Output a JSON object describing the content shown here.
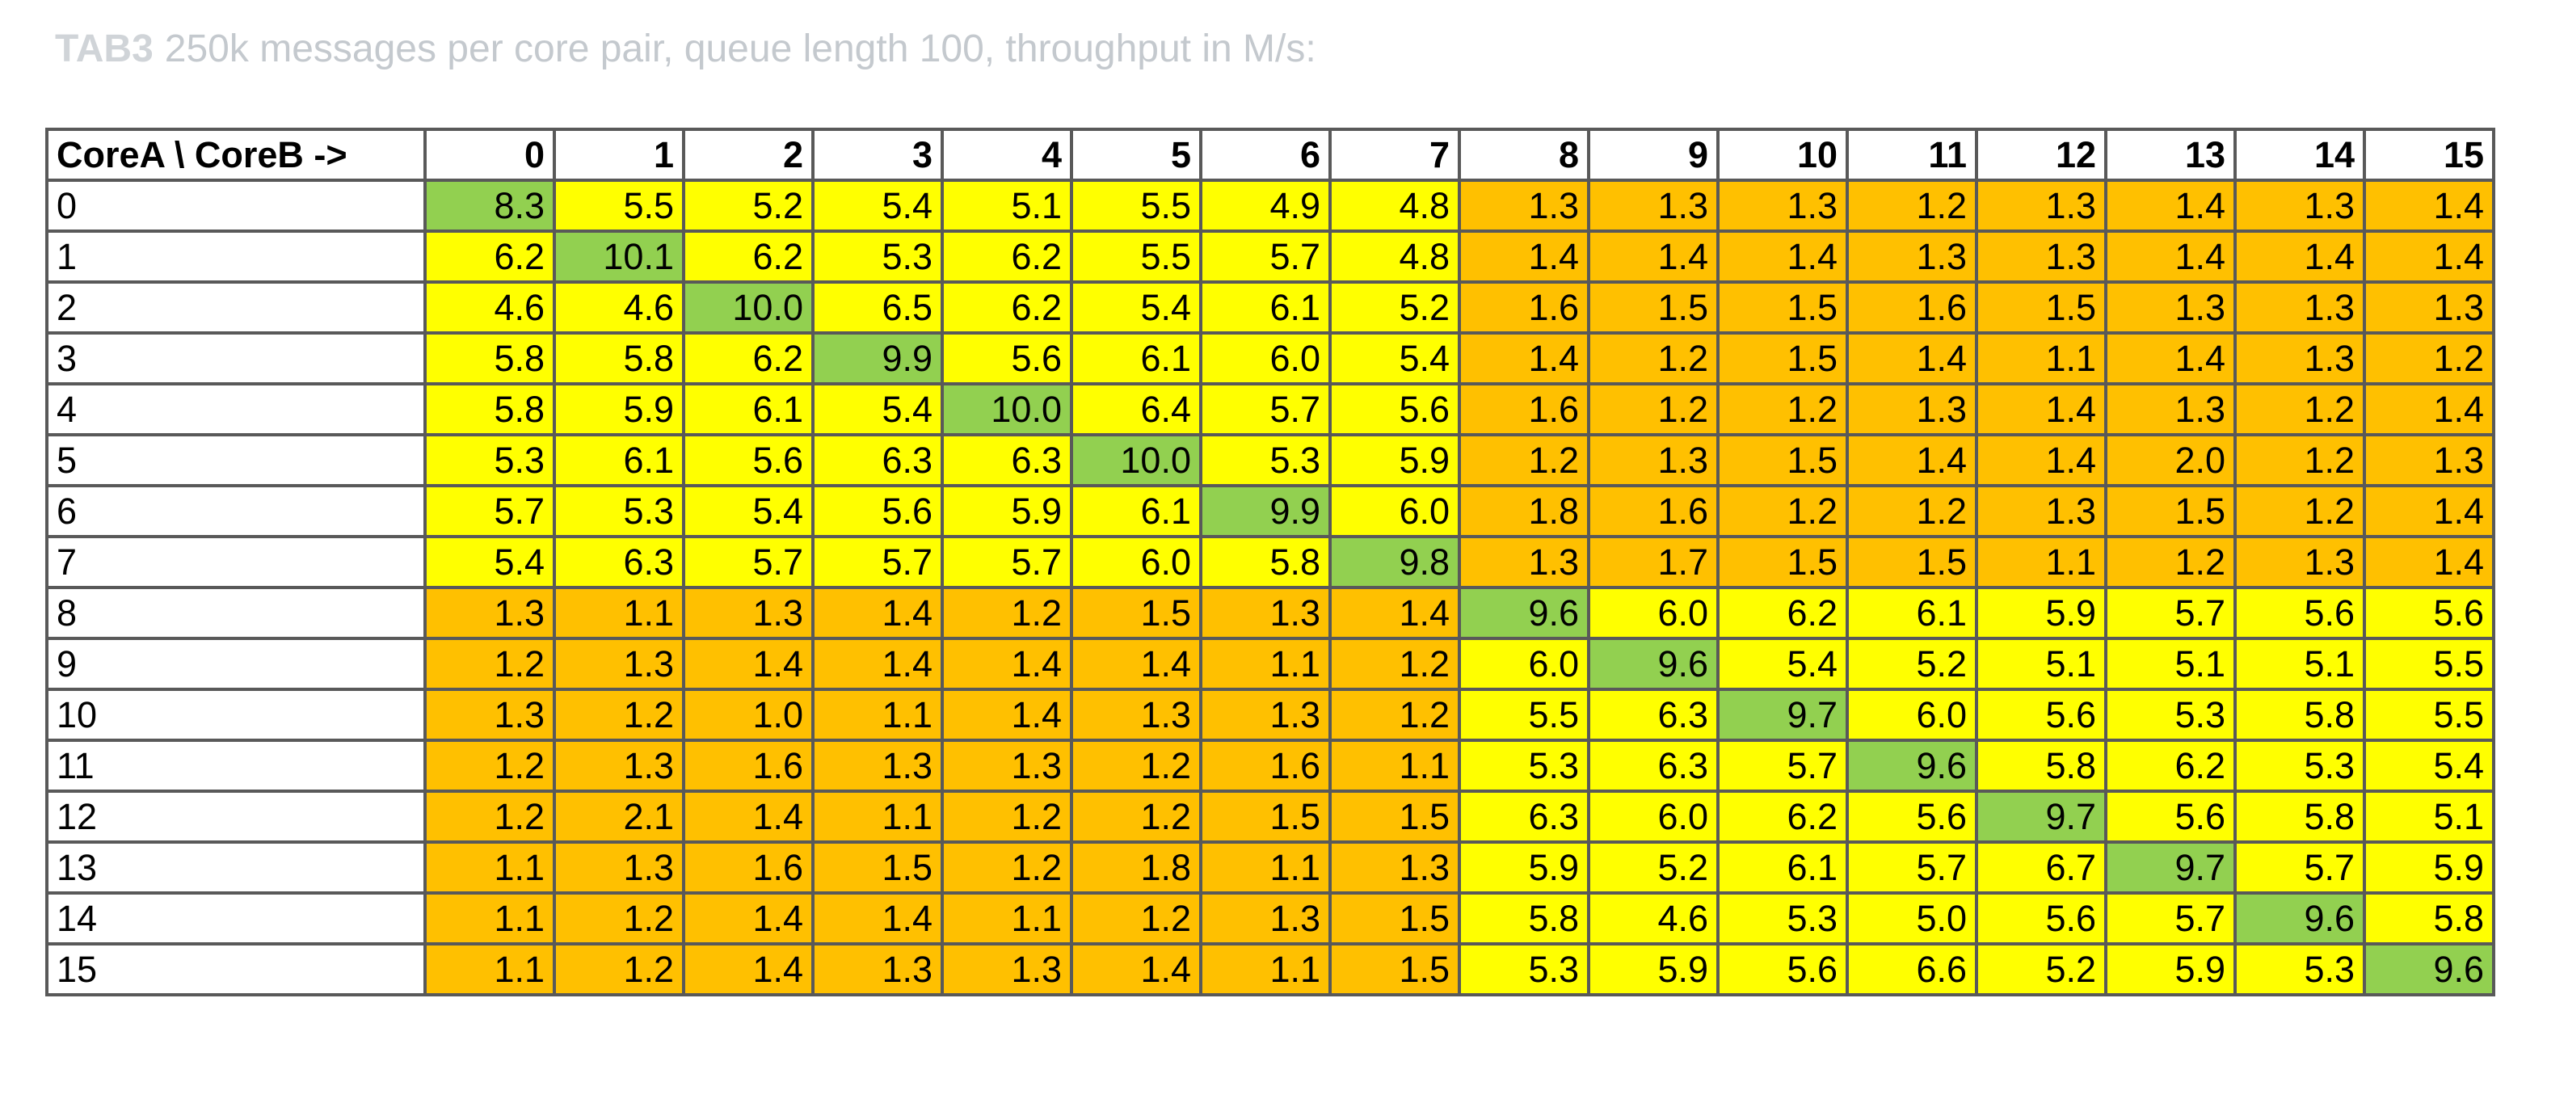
{
  "caption": {
    "tag": "TAB3",
    "text": "250k messages per core pair, queue length 100, throughput in M/s:"
  },
  "colors": {
    "diagonal": "#92d050",
    "same_socket": "#ffff00",
    "cross_socket": "#ffc000",
    "border": "#595959",
    "caption": "#c4c9ce"
  },
  "chart_data": {
    "type": "heatmap",
    "corner_label": "CoreA \\ CoreB ->",
    "columns": [
      "0",
      "1",
      "2",
      "3",
      "4",
      "5",
      "6",
      "7",
      "8",
      "9",
      "10",
      "11",
      "12",
      "13",
      "14",
      "15"
    ],
    "rows": [
      "0",
      "1",
      "2",
      "3",
      "4",
      "5",
      "6",
      "7",
      "8",
      "9",
      "10",
      "11",
      "12",
      "13",
      "14",
      "15"
    ],
    "values": [
      [
        "8.3",
        "5.5",
        "5.2",
        "5.4",
        "5.1",
        "5.5",
        "4.9",
        "4.8",
        "1.3",
        "1.3",
        "1.3",
        "1.2",
        "1.3",
        "1.4",
        "1.3",
        "1.4"
      ],
      [
        "6.2",
        "10.1",
        "6.2",
        "5.3",
        "6.2",
        "5.5",
        "5.7",
        "4.8",
        "1.4",
        "1.4",
        "1.4",
        "1.3",
        "1.3",
        "1.4",
        "1.4",
        "1.4"
      ],
      [
        "4.6",
        "4.6",
        "10.0",
        "6.5",
        "6.2",
        "5.4",
        "6.1",
        "5.2",
        "1.6",
        "1.5",
        "1.5",
        "1.6",
        "1.5",
        "1.3",
        "1.3",
        "1.3"
      ],
      [
        "5.8",
        "5.8",
        "6.2",
        "9.9",
        "5.6",
        "6.1",
        "6.0",
        "5.4",
        "1.4",
        "1.2",
        "1.5",
        "1.4",
        "1.1",
        "1.4",
        "1.3",
        "1.2"
      ],
      [
        "5.8",
        "5.9",
        "6.1",
        "5.4",
        "10.0",
        "6.4",
        "5.7",
        "5.6",
        "1.6",
        "1.2",
        "1.2",
        "1.3",
        "1.4",
        "1.3",
        "1.2",
        "1.4"
      ],
      [
        "5.3",
        "6.1",
        "5.6",
        "6.3",
        "6.3",
        "10.0",
        "5.3",
        "5.9",
        "1.2",
        "1.3",
        "1.5",
        "1.4",
        "1.4",
        "2.0",
        "1.2",
        "1.3"
      ],
      [
        "5.7",
        "5.3",
        "5.4",
        "5.6",
        "5.9",
        "6.1",
        "9.9",
        "6.0",
        "1.8",
        "1.6",
        "1.2",
        "1.2",
        "1.3",
        "1.5",
        "1.2",
        "1.4"
      ],
      [
        "5.4",
        "6.3",
        "5.7",
        "5.7",
        "5.7",
        "6.0",
        "5.8",
        "9.8",
        "1.3",
        "1.7",
        "1.5",
        "1.5",
        "1.1",
        "1.2",
        "1.3",
        "1.4"
      ],
      [
        "1.3",
        "1.1",
        "1.3",
        "1.4",
        "1.2",
        "1.5",
        "1.3",
        "1.4",
        "9.6",
        "6.0",
        "6.2",
        "6.1",
        "5.9",
        "5.7",
        "5.6",
        "5.6"
      ],
      [
        "1.2",
        "1.3",
        "1.4",
        "1.4",
        "1.4",
        "1.4",
        "1.1",
        "1.2",
        "6.0",
        "9.6",
        "5.4",
        "5.2",
        "5.1",
        "5.1",
        "5.1",
        "5.5"
      ],
      [
        "1.3",
        "1.2",
        "1.0",
        "1.1",
        "1.4",
        "1.3",
        "1.3",
        "1.2",
        "5.5",
        "6.3",
        "9.7",
        "6.0",
        "5.6",
        "5.3",
        "5.8",
        "5.5"
      ],
      [
        "1.2",
        "1.3",
        "1.6",
        "1.3",
        "1.3",
        "1.2",
        "1.6",
        "1.1",
        "5.3",
        "6.3",
        "5.7",
        "9.6",
        "5.8",
        "6.2",
        "5.3",
        "5.4"
      ],
      [
        "1.2",
        "2.1",
        "1.4",
        "1.1",
        "1.2",
        "1.2",
        "1.5",
        "1.5",
        "6.3",
        "6.0",
        "6.2",
        "5.6",
        "9.7",
        "5.6",
        "5.8",
        "5.1"
      ],
      [
        "1.1",
        "1.3",
        "1.6",
        "1.5",
        "1.2",
        "1.8",
        "1.1",
        "1.3",
        "5.9",
        "5.2",
        "6.1",
        "5.7",
        "6.7",
        "9.7",
        "5.7",
        "5.9"
      ],
      [
        "1.1",
        "1.2",
        "1.4",
        "1.4",
        "1.1",
        "1.2",
        "1.3",
        "1.5",
        "5.8",
        "4.6",
        "5.3",
        "5.0",
        "5.6",
        "5.7",
        "9.6",
        "5.8"
      ],
      [
        "1.1",
        "1.2",
        "1.4",
        "1.3",
        "1.3",
        "1.4",
        "1.1",
        "1.5",
        "5.3",
        "5.9",
        "5.6",
        "6.6",
        "5.2",
        "5.9",
        "5.3",
        "9.6"
      ]
    ],
    "socket_boundary": 8
  }
}
